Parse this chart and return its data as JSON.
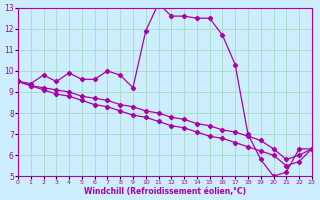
{
  "xlabel": "Windchill (Refroidissement éolien,°C)",
  "bg_color": "#cceeff",
  "grid_color": "#aaddcc",
  "line_color": "#aa00aa",
  "x": [
    0,
    1,
    2,
    3,
    4,
    5,
    6,
    7,
    8,
    9,
    10,
    11,
    12,
    13,
    14,
    15,
    16,
    17,
    18,
    19,
    20,
    21,
    22,
    23
  ],
  "line1": [
    9.5,
    9.4,
    9.8,
    9.5,
    9.9,
    9.6,
    9.6,
    10.0,
    9.8,
    9.2,
    11.9,
    13.2,
    12.6,
    12.6,
    12.5,
    12.5,
    11.7,
    10.3,
    7.0,
    5.8,
    5.0,
    5.2,
    6.3,
    6.3
  ],
  "line2": [
    9.5,
    9.3,
    9.2,
    9.1,
    9.0,
    8.8,
    8.7,
    8.6,
    8.4,
    8.3,
    8.1,
    8.0,
    7.8,
    7.7,
    7.5,
    7.4,
    7.2,
    7.1,
    6.9,
    6.7,
    6.3,
    5.8,
    6.0,
    6.3
  ],
  "line3": [
    9.5,
    9.3,
    9.1,
    8.9,
    8.8,
    8.6,
    8.4,
    8.3,
    8.1,
    7.9,
    7.8,
    7.6,
    7.4,
    7.3,
    7.1,
    6.9,
    6.8,
    6.6,
    6.4,
    6.2,
    6.0,
    5.5,
    5.7,
    6.3
  ],
  "ylim": [
    5,
    13
  ],
  "xlim": [
    0,
    23
  ],
  "yticks": [
    5,
    6,
    7,
    8,
    9,
    10,
    11,
    12,
    13
  ],
  "xticks": [
    0,
    1,
    2,
    3,
    4,
    5,
    6,
    7,
    8,
    9,
    10,
    11,
    12,
    13,
    14,
    15,
    16,
    17,
    18,
    19,
    20,
    21,
    22,
    23
  ]
}
